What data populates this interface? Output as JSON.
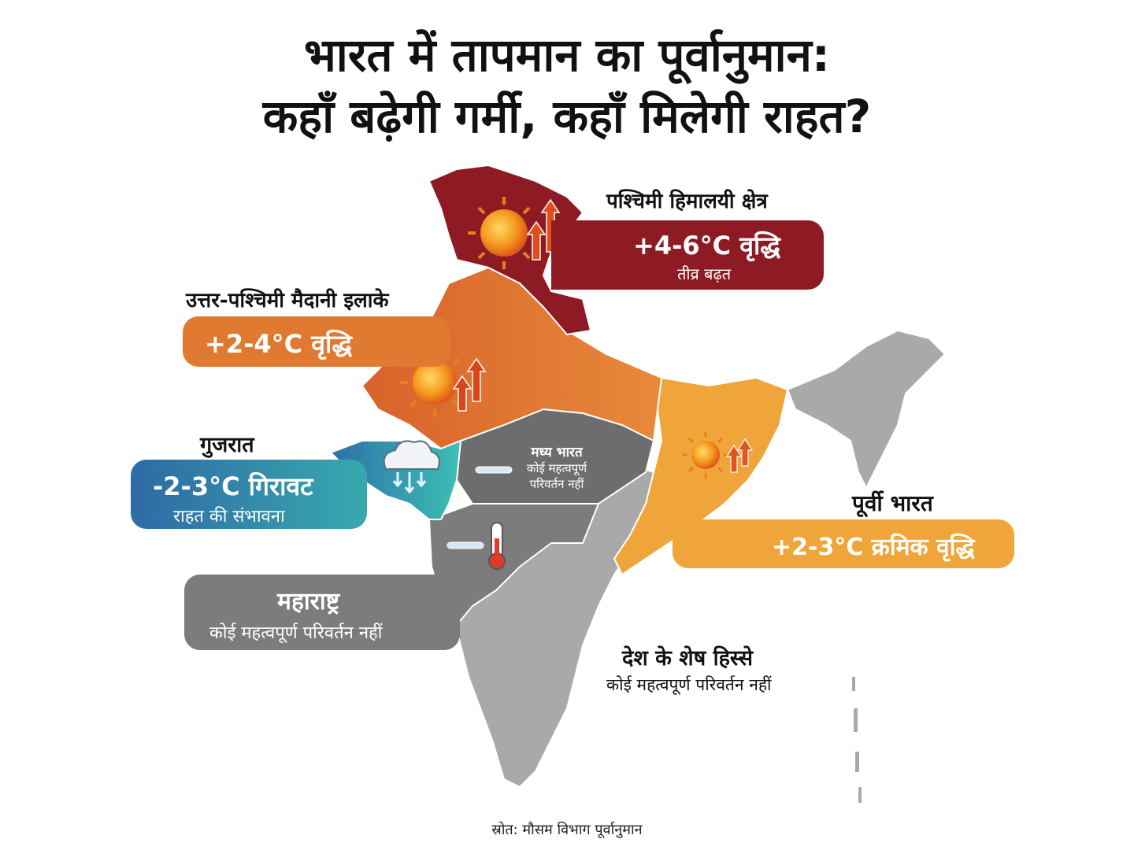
{
  "title": {
    "line1": "भारत में तापमान का पूर्वानुमान:",
    "line2": "कहाँ बढ़ेगी गर्मी, कहाँ मिलेगी राहत?"
  },
  "regions": {
    "western_himalaya": {
      "label": "पश्चिमी हिमालयी क्षेत्र",
      "change": "+4-6°C वृद्धि",
      "note": "तीव्र बढ़त",
      "color": "#8e1b24"
    },
    "northwest_plains": {
      "label": "उत्तर-पश्चिमी मैदानी इलाके",
      "change": "+2-4°C वृद्धि",
      "color": "#e07a30"
    },
    "gujarat": {
      "label": "गुजरात",
      "change": "-2-3°C गिरावट",
      "note": "राहत की संभावना",
      "color": "#2aa7b0"
    },
    "central_india": {
      "label": "मध्य भारत",
      "note_line1": "कोई महत्वपूर्ण",
      "note_line2": "परिवर्तन नहीं",
      "color": "#6d6d6d"
    },
    "maharashtra": {
      "label": "महाराष्ट्र",
      "note": "कोई महत्वपूर्ण परिवर्तन नहीं",
      "color": "#7c7c7c"
    },
    "east_india": {
      "label": "पूर्वी भारत",
      "change": "+2-3°C क्रमिक वृद्धि",
      "color": "#f0a53a"
    },
    "rest_of_country": {
      "label": "देश के शेष हिस्से",
      "note": "कोई महत्वपूर्ण परिवर्तन नहीं",
      "color": "#a9a9a9"
    }
  },
  "icons": [
    "sun-icon",
    "up-arrow-icon",
    "rain-cloud-icon",
    "down-arrow-icon",
    "thermometer-icon",
    "equal-dash-icon"
  ],
  "source": "स्रोत: मौसम विभाग पूर्वानुमान"
}
